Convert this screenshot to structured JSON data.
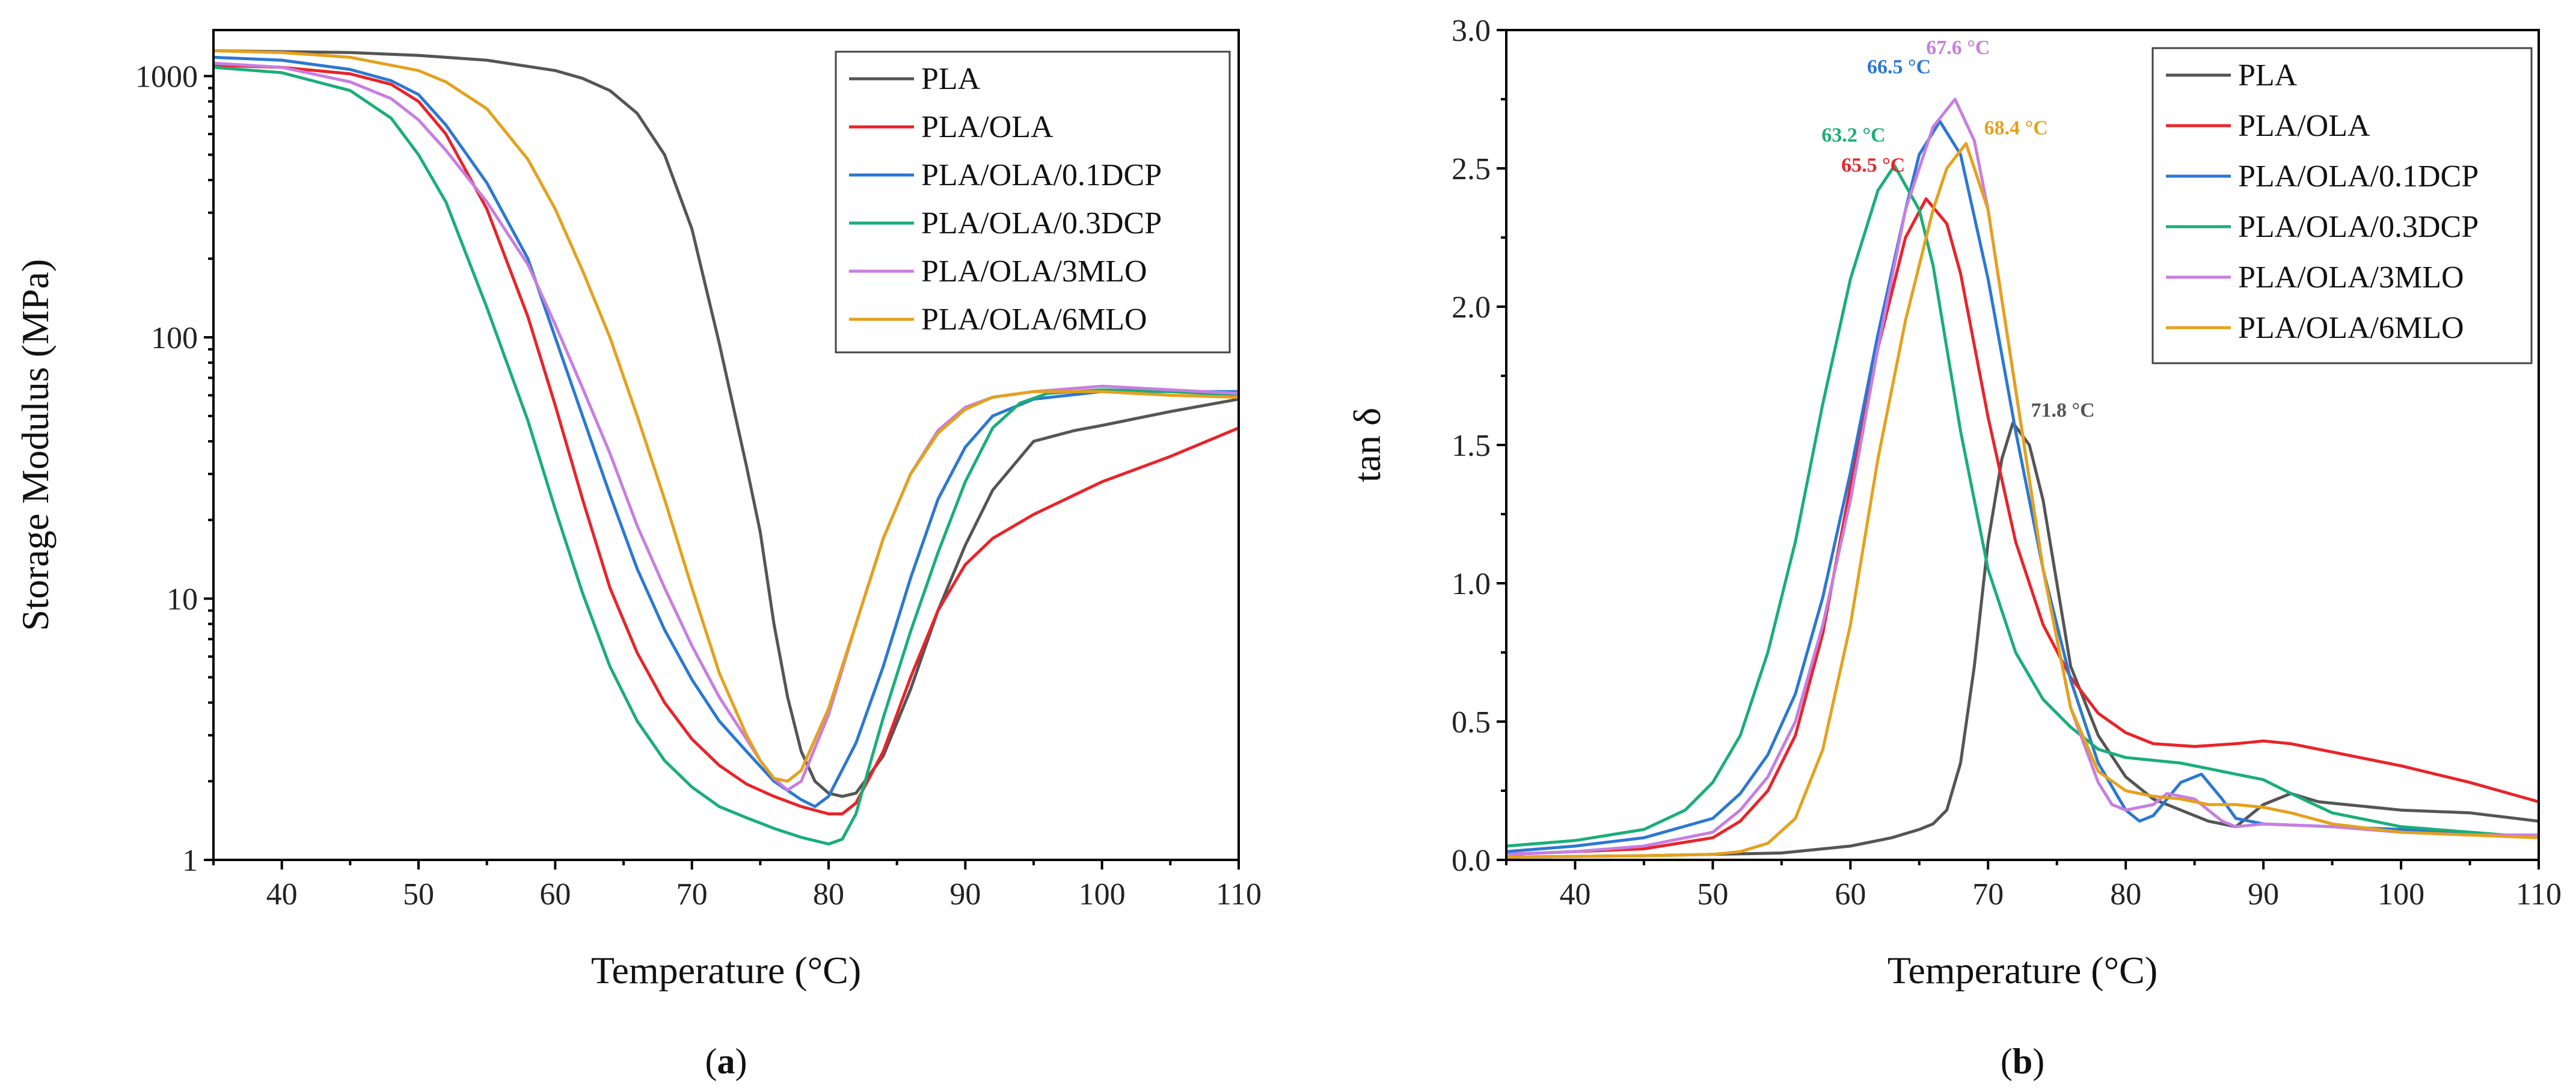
{
  "chart_data": [
    {
      "type": "line",
      "id": "a",
      "panel_label": "(a)",
      "xlabel": "Temperature (°C)",
      "ylabel": "Storage Modulus (MPa)",
      "xlim": [
        35,
        110
      ],
      "ylim": [
        1,
        1500
      ],
      "yscale": "log",
      "xticks": [
        40,
        50,
        60,
        70,
        80,
        90,
        100,
        110
      ],
      "yticks": [
        1,
        10,
        100,
        1000
      ],
      "xtick_labels": [
        "40",
        "50",
        "60",
        "70",
        "80",
        "90",
        "100",
        "110"
      ],
      "ytick_labels": [
        "1",
        "10",
        "100",
        "1000"
      ],
      "legend_position": "top-right",
      "series": [
        {
          "name": "PLA",
          "color": "#555555",
          "x": [
            35,
            40,
            45,
            50,
            55,
            60,
            62,
            64,
            66,
            68,
            70,
            72,
            74,
            75,
            76,
            77,
            78,
            79,
            80,
            81,
            82,
            84,
            86,
            88,
            90,
            92,
            95,
            98,
            100,
            105,
            110
          ],
          "y": [
            1250,
            1240,
            1230,
            1200,
            1150,
            1050,
            980,
            880,
            720,
            500,
            260,
            95,
            32,
            18,
            8,
            4.2,
            2.6,
            2.0,
            1.8,
            1.75,
            1.8,
            2.5,
            4.5,
            9,
            16,
            26,
            40,
            44,
            46,
            52,
            58
          ]
        },
        {
          "name": "PLA/OLA",
          "color": "#e8242a",
          "x": [
            35,
            40,
            45,
            48,
            50,
            52,
            55,
            58,
            60,
            62,
            64,
            66,
            68,
            70,
            72,
            74,
            76,
            78,
            80,
            81,
            82,
            84,
            86,
            88,
            90,
            92,
            95,
            100,
            105,
            110
          ],
          "y": [
            1100,
            1080,
            1020,
            930,
            800,
            600,
            310,
            120,
            55,
            24,
            11,
            6.2,
            4.0,
            2.9,
            2.3,
            1.95,
            1.75,
            1.6,
            1.5,
            1.5,
            1.65,
            2.6,
            5,
            9,
            13.5,
            17,
            21,
            28,
            35,
            45
          ]
        },
        {
          "name": "PLA/OLA/0.1DCP",
          "color": "#2b78d2",
          "x": [
            35,
            40,
            45,
            48,
            50,
            52,
            55,
            58,
            60,
            62,
            64,
            66,
            68,
            70,
            72,
            74,
            76,
            78,
            79,
            80,
            82,
            84,
            86,
            88,
            90,
            92,
            95,
            100,
            105,
            110
          ],
          "y": [
            1180,
            1150,
            1060,
            960,
            850,
            650,
            390,
            200,
            100,
            50,
            25,
            13,
            7.6,
            4.9,
            3.4,
            2.6,
            2.0,
            1.7,
            1.6,
            1.75,
            2.8,
            5.5,
            12,
            24,
            38,
            50,
            58,
            62,
            62,
            62
          ]
        },
        {
          "name": "PLA/OLA/0.3DCP",
          "color": "#1aae79",
          "x": [
            35,
            40,
            45,
            48,
            50,
            52,
            55,
            58,
            60,
            62,
            64,
            66,
            68,
            70,
            72,
            74,
            76,
            78,
            80,
            81,
            82,
            83,
            84,
            86,
            88,
            90,
            92,
            94,
            96,
            100,
            105,
            110
          ],
          "y": [
            1080,
            1030,
            880,
            690,
            500,
            330,
            130,
            48,
            22,
            10.5,
            5.5,
            3.4,
            2.4,
            1.9,
            1.6,
            1.45,
            1.32,
            1.22,
            1.15,
            1.2,
            1.5,
            2.3,
            3.5,
            7.5,
            15,
            28,
            45,
            56,
            61,
            63,
            62,
            60
          ]
        },
        {
          "name": "PLA/OLA/3MLO",
          "color": "#c77ee0",
          "x": [
            35,
            40,
            45,
            48,
            50,
            52,
            55,
            58,
            60,
            62,
            64,
            66,
            68,
            70,
            72,
            74,
            75,
            76,
            77,
            78,
            80,
            82,
            84,
            86,
            88,
            90,
            92,
            95,
            100,
            105,
            110
          ],
          "y": [
            1120,
            1080,
            950,
            820,
            680,
            520,
            330,
            190,
            112,
            64,
            36,
            19,
            11,
            6.6,
            4.2,
            2.9,
            2.4,
            2.05,
            1.85,
            2.0,
            3.6,
            8,
            17,
            30,
            44,
            54,
            59,
            62,
            65,
            63,
            61
          ]
        },
        {
          "name": "PLA/OLA/6MLO",
          "color": "#e5a11c",
          "x": [
            35,
            40,
            45,
            50,
            52,
            55,
            58,
            60,
            62,
            64,
            66,
            68,
            70,
            72,
            74,
            75,
            76,
            77,
            78,
            80,
            82,
            84,
            86,
            88,
            90,
            92,
            95,
            100,
            105,
            110
          ],
          "y": [
            1250,
            1230,
            1180,
            1050,
            950,
            750,
            480,
            310,
            180,
            100,
            50,
            24,
            11,
            5.2,
            3.0,
            2.4,
            2.05,
            2.0,
            2.2,
            3.8,
            8,
            17,
            30,
            43,
            53,
            59,
            62,
            62,
            60,
            59
          ]
        }
      ]
    },
    {
      "type": "line",
      "id": "b",
      "panel_label": "(b)",
      "xlabel": "Temperature (°C)",
      "ylabel": "tan δ",
      "xlim": [
        35,
        110
      ],
      "ylim": [
        0,
        3.0
      ],
      "xticks": [
        40,
        50,
        60,
        70,
        80,
        90,
        100,
        110
      ],
      "yticks": [
        0.0,
        0.5,
        1.0,
        1.5,
        2.0,
        2.5,
        3.0
      ],
      "xtick_labels": [
        "40",
        "50",
        "60",
        "70",
        "80",
        "90",
        "100",
        "110"
      ],
      "ytick_labels": [
        "0.0",
        "0.5",
        "1.0",
        "1.5",
        "2.0",
        "2.5",
        "3.0"
      ],
      "legend_position": "top-right",
      "series": [
        {
          "name": "PLA",
          "color": "#555555",
          "peak_label": "71.8 °C",
          "peak_x": 71.8,
          "peak_y": 1.58,
          "x": [
            35,
            45,
            50,
            55,
            60,
            63,
            65,
            66,
            67,
            68,
            69,
            70,
            71,
            71.8,
            73,
            74,
            75,
            76,
            78,
            80,
            82,
            84,
            86,
            88,
            90,
            92,
            94,
            96,
            100,
            105,
            110
          ],
          "y": [
            0.01,
            0.015,
            0.02,
            0.025,
            0.05,
            0.08,
            0.11,
            0.13,
            0.18,
            0.35,
            0.7,
            1.15,
            1.45,
            1.58,
            1.5,
            1.3,
            1.0,
            0.7,
            0.45,
            0.3,
            0.22,
            0.18,
            0.14,
            0.12,
            0.2,
            0.24,
            0.21,
            0.2,
            0.18,
            0.17,
            0.14
          ]
        },
        {
          "name": "PLA/OLA",
          "color": "#e8242a",
          "peak_label": "65.5 °C",
          "peak_x": 65.5,
          "peak_y": 2.39,
          "x": [
            35,
            40,
            45,
            50,
            52,
            54,
            56,
            58,
            60,
            62,
            64,
            65.5,
            67,
            68,
            70,
            72,
            74,
            76,
            78,
            80,
            82,
            85,
            88,
            90,
            92,
            95,
            100,
            105,
            110
          ],
          "y": [
            0.02,
            0.03,
            0.04,
            0.08,
            0.14,
            0.25,
            0.45,
            0.82,
            1.35,
            1.85,
            2.25,
            2.39,
            2.3,
            2.12,
            1.6,
            1.15,
            0.85,
            0.66,
            0.53,
            0.46,
            0.42,
            0.41,
            0.42,
            0.43,
            0.42,
            0.39,
            0.34,
            0.28,
            0.21
          ]
        },
        {
          "name": "PLA/OLA/0.1DCP",
          "color": "#2b78d2",
          "peak_label": "66.5 °C",
          "peak_x": 66.5,
          "peak_y": 2.67,
          "x": [
            35,
            40,
            45,
            50,
            52,
            54,
            56,
            58,
            60,
            62,
            64,
            65,
            66.5,
            68,
            70,
            72,
            74,
            76,
            78,
            80,
            81,
            82,
            84,
            85.5,
            87,
            88,
            90,
            95,
            100,
            105,
            110
          ],
          "y": [
            0.03,
            0.05,
            0.08,
            0.15,
            0.24,
            0.38,
            0.6,
            0.95,
            1.4,
            1.9,
            2.35,
            2.55,
            2.67,
            2.55,
            2.1,
            1.55,
            1.05,
            0.65,
            0.35,
            0.18,
            0.14,
            0.16,
            0.28,
            0.31,
            0.22,
            0.15,
            0.13,
            0.12,
            0.11,
            0.1,
            0.08
          ]
        },
        {
          "name": "PLA/OLA/0.3DCP",
          "color": "#1aae79",
          "peak_label": "63.2 °C",
          "peak_x": 63.2,
          "peak_y": 2.51,
          "x": [
            35,
            40,
            45,
            48,
            50,
            52,
            54,
            56,
            58,
            60,
            62,
            63.2,
            65,
            66,
            68,
            70,
            72,
            74,
            76,
            78,
            80,
            84,
            88,
            90,
            92,
            95,
            100,
            105,
            110
          ],
          "y": [
            0.05,
            0.07,
            0.11,
            0.18,
            0.28,
            0.45,
            0.75,
            1.15,
            1.65,
            2.1,
            2.42,
            2.51,
            2.35,
            2.15,
            1.55,
            1.05,
            0.75,
            0.58,
            0.48,
            0.4,
            0.37,
            0.35,
            0.31,
            0.29,
            0.24,
            0.17,
            0.12,
            0.1,
            0.08
          ]
        },
        {
          "name": "PLA/OLA/3MLO",
          "color": "#c77ee0",
          "peak_label": "67.6 °C",
          "peak_x": 67.6,
          "peak_y": 2.75,
          "x": [
            35,
            40,
            45,
            50,
            52,
            54,
            56,
            58,
            60,
            62,
            64,
            66,
            67.6,
            69,
            70,
            72,
            74,
            76,
            78,
            79,
            80,
            82,
            83,
            85,
            87,
            88,
            90,
            95,
            100,
            105,
            110
          ],
          "y": [
            0.02,
            0.03,
            0.05,
            0.1,
            0.18,
            0.3,
            0.5,
            0.85,
            1.3,
            1.85,
            2.35,
            2.65,
            2.75,
            2.6,
            2.35,
            1.7,
            1.05,
            0.55,
            0.28,
            0.2,
            0.18,
            0.2,
            0.24,
            0.22,
            0.14,
            0.12,
            0.13,
            0.12,
            0.1,
            0.09,
            0.09
          ]
        },
        {
          "name": "PLA/OLA/6MLO",
          "color": "#e5a11c",
          "peak_label": "68.4 °C",
          "peak_x": 68.4,
          "peak_y": 2.59,
          "x": [
            35,
            45,
            50,
            52,
            54,
            56,
            58,
            60,
            62,
            64,
            66,
            67,
            68.4,
            70,
            72,
            74,
            76,
            78,
            80,
            82,
            84,
            86,
            88,
            90,
            92,
            95,
            100,
            105,
            110
          ],
          "y": [
            0.01,
            0.015,
            0.02,
            0.03,
            0.06,
            0.15,
            0.4,
            0.85,
            1.45,
            1.95,
            2.35,
            2.5,
            2.59,
            2.35,
            1.7,
            1.05,
            0.55,
            0.32,
            0.25,
            0.23,
            0.22,
            0.2,
            0.2,
            0.19,
            0.17,
            0.13,
            0.1,
            0.09,
            0.08
          ]
        }
      ]
    }
  ]
}
